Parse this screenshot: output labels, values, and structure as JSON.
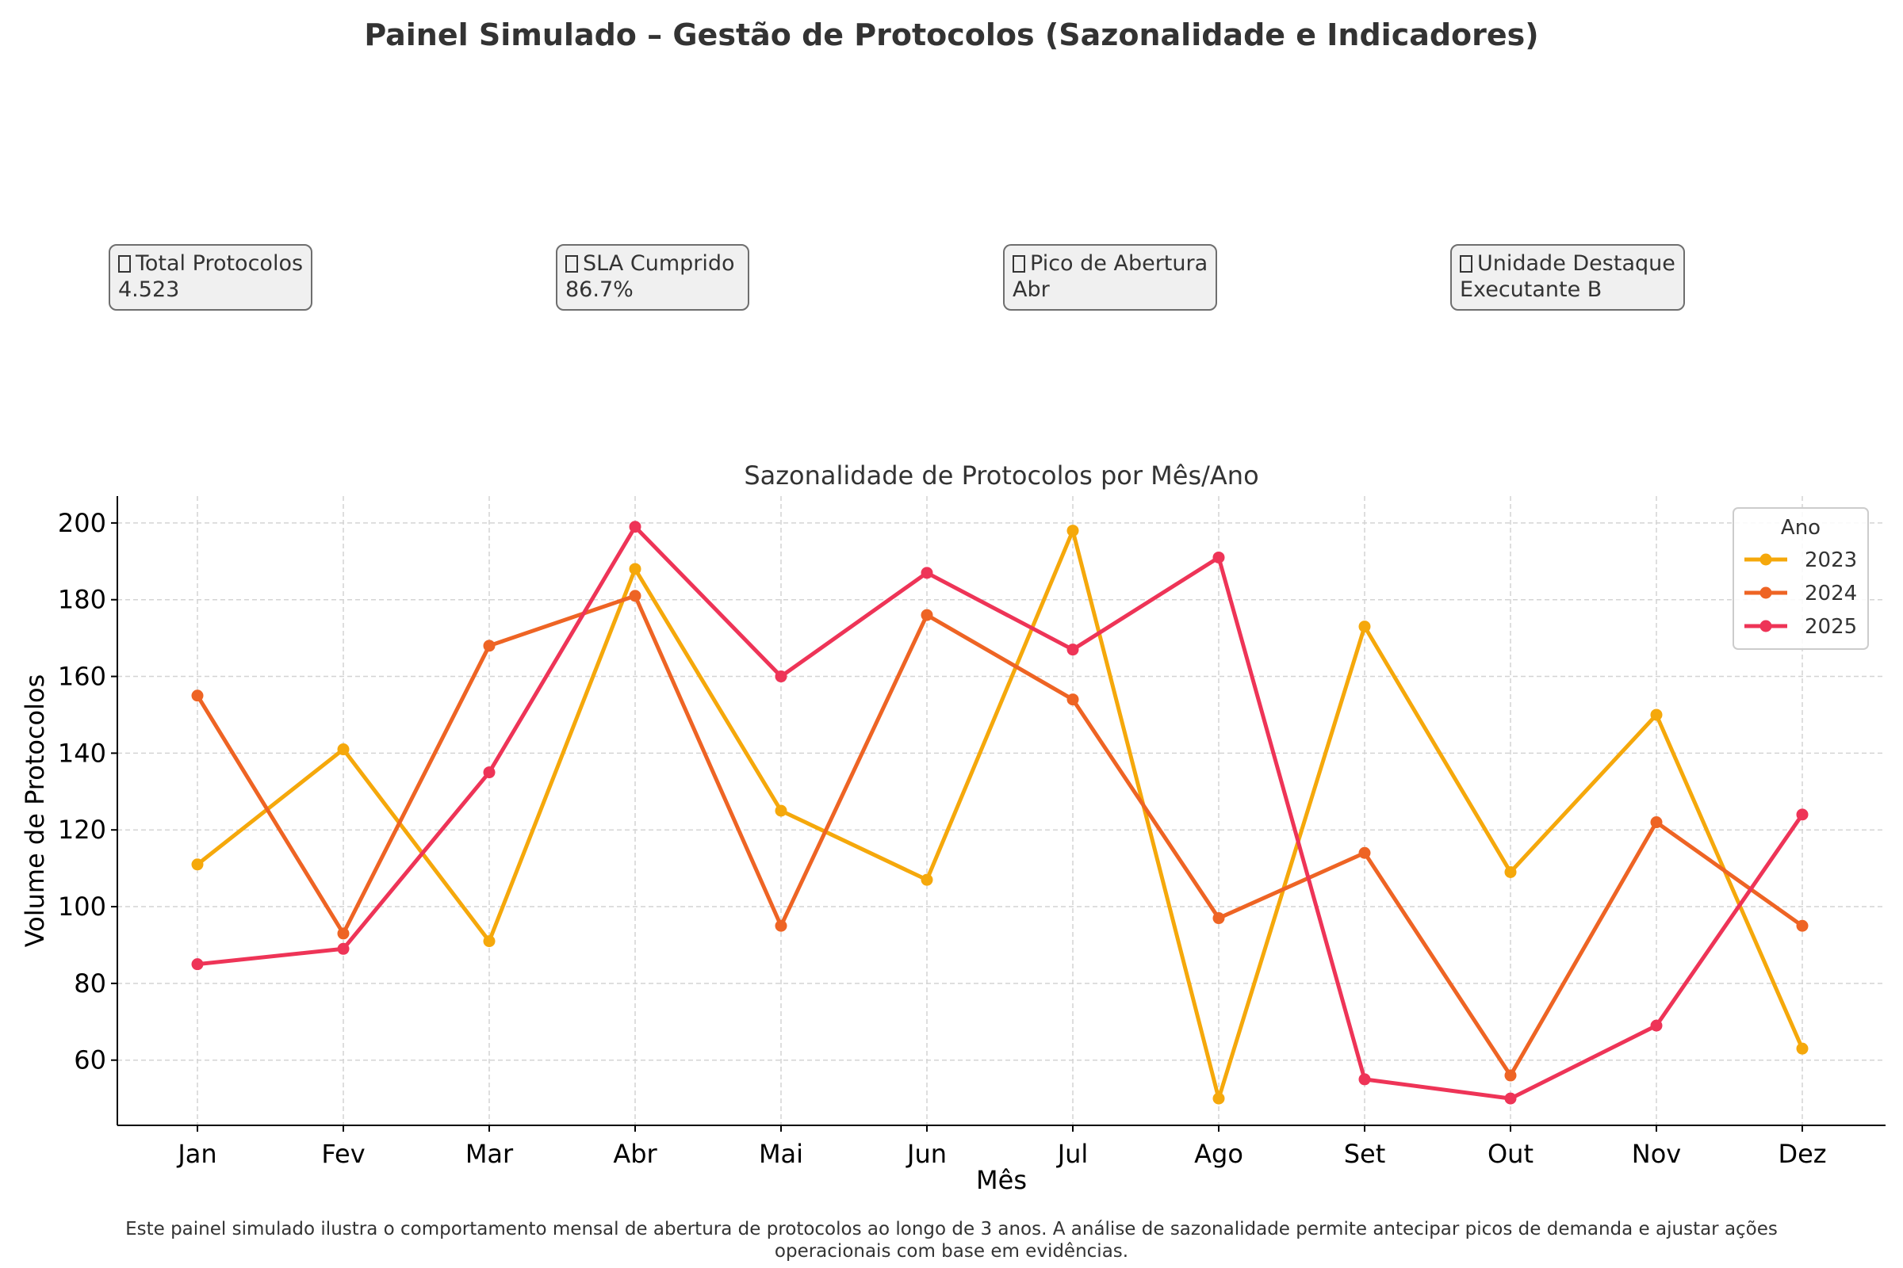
{
  "dashboard": {
    "title": "Painel Simulado – Gestão de Protocolos (Sazonalidade e Indicadores)",
    "kpis": [
      {
        "icon": "kpi-icon",
        "label": "Total Protocolos",
        "value": "4.523"
      },
      {
        "icon": "kpi-icon",
        "label": "SLA Cumprido",
        "value": "86.7%"
      },
      {
        "icon": "kpi-icon",
        "label": "Pico de Abertura",
        "value": "Abr"
      },
      {
        "icon": "kpi-icon",
        "label": "Unidade Destaque",
        "value": "Executante B"
      }
    ],
    "footer_line1": "Este painel simulado ilustra o comportamento mensal de abertura de protocolos ao longo de 3 anos. A análise de sazonalidade permite antecipar picos de demanda e ajustar ações",
    "footer_line2": "operacionais com base em evidências."
  },
  "chart_data": {
    "type": "line",
    "title": "Sazonalidade de Protocolos por Mês/Ano",
    "xlabel": "Mês",
    "ylabel": "Volume de Protocolos",
    "categories": [
      "Jan",
      "Fev",
      "Mar",
      "Abr",
      "Mai",
      "Jun",
      "Jul",
      "Ago",
      "Set",
      "Out",
      "Nov",
      "Dez"
    ],
    "ylim": [
      43,
      207
    ],
    "yticks": [
      60,
      80,
      100,
      120,
      140,
      160,
      180,
      200
    ],
    "grid": true,
    "legend_title": "Ano",
    "legend_position": "top-right",
    "series": [
      {
        "name": "2023",
        "color": "#f5a80b",
        "values": [
          111,
          141,
          91,
          188,
          125,
          107,
          198,
          50,
          173,
          109,
          150,
          63
        ]
      },
      {
        "name": "2024",
        "color": "#ee6424",
        "values": [
          155,
          93,
          168,
          181,
          95,
          176,
          154,
          97,
          114,
          56,
          122,
          95
        ]
      },
      {
        "name": "2025",
        "color": "#ee3457",
        "values": [
          85,
          89,
          135,
          199,
          160,
          187,
          167,
          191,
          55,
          50,
          69,
          124
        ]
      }
    ]
  }
}
